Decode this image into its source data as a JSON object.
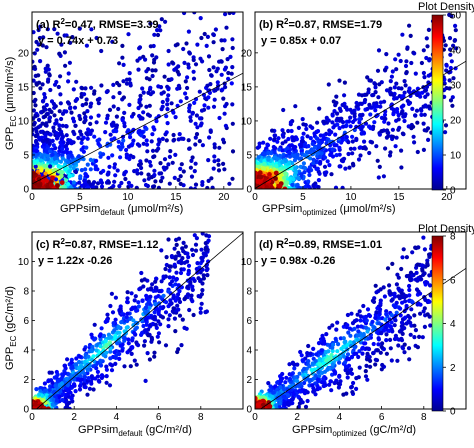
{
  "chart_data": [
    {
      "type": "scatter",
      "id": "a",
      "panel_label": "(a)",
      "stats": "R²=0.47, RMSE=3.39",
      "equation": "y = 0.74x + 0.73",
      "xlabel": "GPPsim_default (μmol/m²/s)",
      "xlabel_main": "GPPsim",
      "xlabel_sub": "default",
      "xlabel_unit": "(μmol/m²/s)",
      "ylabel": "GPP_EC (μmol/m²/s)",
      "xlim": [
        0,
        22
      ],
      "ylim": [
        0,
        26
      ],
      "xticks": [
        "0",
        "5",
        "10",
        "15",
        "20"
      ],
      "yticks": [
        "0",
        "5",
        "10",
        "15",
        "20"
      ],
      "fit": {
        "slope": 0.74,
        "intercept": 0.73
      }
    },
    {
      "type": "scatter",
      "id": "b",
      "panel_label": "(b)",
      "stats": "R²=0.87, RMSE=1.79",
      "equation": "y = 0.85x + 0.07",
      "xlabel": "GPPsim_optimized (μmol/m²/s)",
      "xlabel_main": "GPPsim",
      "xlabel_sub": "optimized",
      "xlabel_unit": "(μmol/m²/s)",
      "xlim": [
        0,
        22
      ],
      "ylim": [
        0,
        26
      ],
      "xticks": [
        "0",
        "5",
        "10",
        "15",
        "20"
      ],
      "yticks": [
        "0",
        "5",
        "10",
        "15",
        "20"
      ],
      "fit": {
        "slope": 0.85,
        "intercept": 0.07
      }
    },
    {
      "type": "scatter",
      "id": "c",
      "panel_label": "(c)",
      "stats": "R²=0.87, RMSE=1.12",
      "equation": "y = 1.22x -0.26",
      "xlabel": "GPPsim_default (gC/m²/d)",
      "xlabel_main": "GPPsim",
      "xlabel_sub": "default",
      "xlabel_unit": "(gC/m²/d)",
      "ylabel": "GPP_EC (gC/m²/d)",
      "xlim": [
        0,
        10
      ],
      "ylim": [
        0,
        12
      ],
      "xticks": [
        "0",
        "2",
        "4",
        "6",
        "8"
      ],
      "yticks": [
        "0",
        "2",
        "4",
        "6",
        "8",
        "10"
      ],
      "fit": {
        "slope": 1.22,
        "intercept": -0.26
      }
    },
    {
      "type": "scatter",
      "id": "d",
      "panel_label": "(d)",
      "stats": "R²=0.89, RMSE=1.01",
      "equation": "y = 0.98x -0.26",
      "xlabel": "GPPsim_optimized (gC/m²/d)",
      "xlabel_main": "GPPsim",
      "xlabel_sub": "optimized",
      "xlabel_unit": "(gC/m²/d)",
      "xlim": [
        0,
        10
      ],
      "ylim": [
        0,
        12
      ],
      "xticks": [
        "0",
        "2",
        "4",
        "6",
        "8"
      ],
      "yticks": [
        "0",
        "2",
        "4",
        "6",
        "8",
        "10"
      ],
      "fit": {
        "slope": 0.98,
        "intercept": -0.26
      }
    }
  ],
  "ylabel_top": {
    "main": "GPP",
    "sub": "EC",
    "unit": "(μmol/m²/s)"
  },
  "ylabel_bottom": {
    "main": "GPP",
    "sub": "EC",
    "unit": "(gC/m²/d)"
  },
  "colorbars": [
    {
      "title": "Plot Density",
      "ticks": [
        "0",
        "10",
        "20",
        "30",
        "40",
        "50"
      ],
      "range": [
        0,
        50
      ]
    },
    {
      "title": "Plot Density",
      "ticks": [
        "0",
        "2",
        "4",
        "6",
        "8"
      ],
      "range": [
        0,
        8
      ]
    }
  ],
  "colormap": [
    "#00008f",
    "#0000ff",
    "#0080ff",
    "#00ffff",
    "#80ff80",
    "#ffff00",
    "#ff8000",
    "#ff0000",
    "#800000"
  ]
}
